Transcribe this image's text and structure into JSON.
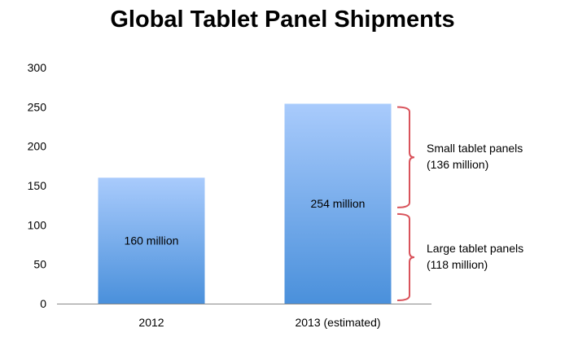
{
  "chart_data": {
    "type": "bar",
    "title": "Global Tablet Panel Shipments",
    "xlabel": "",
    "ylabel": "",
    "ylim": [
      0,
      300
    ],
    "yticks": [
      0,
      50,
      100,
      150,
      200,
      250,
      300
    ],
    "categories": [
      "2012",
      "2013 (estimated)"
    ],
    "values": [
      160,
      254
    ],
    "data_labels": [
      "160 million",
      "254 million"
    ],
    "grid": false,
    "annotations": [
      {
        "line1": "Small tablet panels",
        "line2": "(136 million)",
        "from": 118,
        "to": 254
      },
      {
        "line1": "Large tablet panels",
        "line2": "(118 million)",
        "from": 0,
        "to": 118
      }
    ],
    "colors": {
      "bar_top": "#a9cbfc",
      "bar_bottom": "#4a90db",
      "bracket": "#d9535b",
      "axis": "#888888"
    }
  }
}
